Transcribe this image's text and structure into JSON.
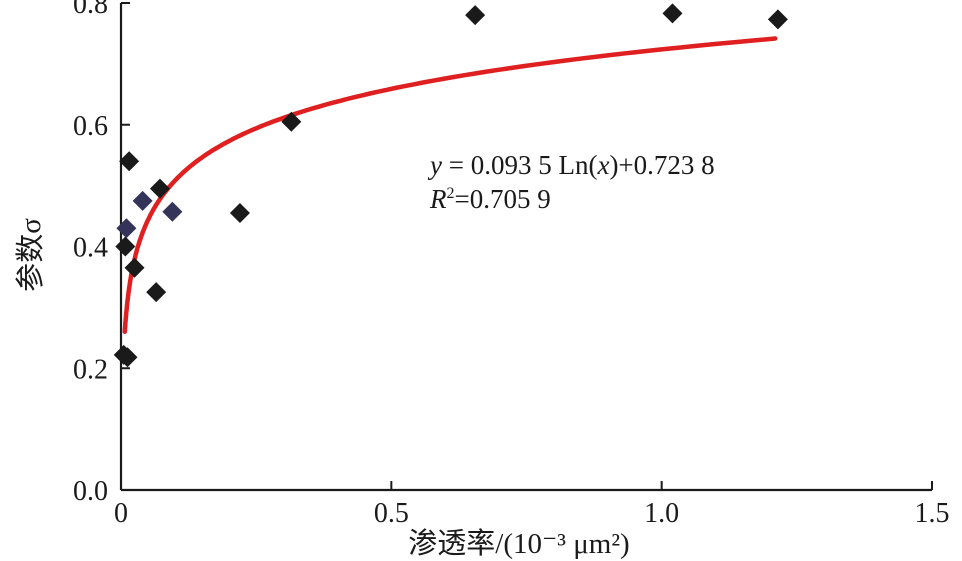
{
  "chart_data": {
    "type": "scatter",
    "xlabel": "渗透率/(10⁻³ μm²)",
    "ylabel": "参数σ",
    "xlim": [
      0,
      1.5
    ],
    "ylim": [
      0,
      0.8
    ],
    "x_ticks": [
      "0",
      "0.5",
      "1.0",
      "1.5"
    ],
    "y_ticks": [
      "0.0",
      "0.2",
      "0.4",
      "0.6",
      "0.8"
    ],
    "grid": false,
    "series": [
      {
        "marker": "diamond",
        "color": "#1a1a1a",
        "points": [
          {
            "x": 0.005,
            "y": 0.222
          },
          {
            "x": 0.012,
            "y": 0.218
          },
          {
            "x": 0.008,
            "y": 0.4
          },
          {
            "x": 0.015,
            "y": 0.54
          },
          {
            "x": 0.025,
            "y": 0.365
          },
          {
            "x": 0.065,
            "y": 0.325
          },
          {
            "x": 0.072,
            "y": 0.495
          },
          {
            "x": 0.22,
            "y": 0.455
          },
          {
            "x": 0.315,
            "y": 0.605
          },
          {
            "x": 0.655,
            "y": 0.78
          },
          {
            "x": 1.02,
            "y": 0.783
          },
          {
            "x": 1.215,
            "y": 0.773
          }
        ]
      },
      {
        "marker": "diamond",
        "color": "#34345a",
        "points": [
          {
            "x": 0.01,
            "y": 0.43
          },
          {
            "x": 0.04,
            "y": 0.475
          },
          {
            "x": 0.095,
            "y": 0.457
          }
        ]
      }
    ],
    "fit": {
      "type": "logarithmic",
      "slope": 0.0935,
      "intercept": 0.7238,
      "x_range": [
        0.007,
        1.21
      ],
      "color": "#e02020"
    },
    "annotations": {
      "equation": {
        "y_var": "y",
        "rhs": " = 0.093 5 Ln(",
        "x_var": "x",
        "rhs_end": ")+0.723 8"
      },
      "r2": {
        "var": "R",
        "sup": "2",
        "value": "=0.705 9"
      }
    }
  }
}
